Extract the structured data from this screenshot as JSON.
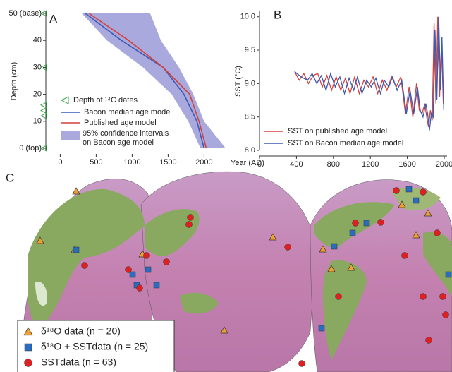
{
  "chart_data": [
    {
      "type": "depth-age",
      "panel": "A",
      "x_label": "Year (AD)",
      "y_label": "Depth (cm)",
      "xlim": [
        -200,
        2300
      ],
      "ylim": [
        0,
        50
      ],
      "xticks": [
        0,
        500,
        1000,
        1500,
        2000
      ],
      "yticks": [
        {
          "value": 0,
          "label": "0 (top)"
        },
        10,
        20,
        30,
        40,
        {
          "value": 50,
          "label": "50 (base)"
        }
      ],
      "depths": [
        0,
        10,
        20,
        30,
        40,
        50
      ],
      "c14_dates": {
        "name": "Depth of ¹⁴C dates",
        "color": "#3aa84a",
        "depths": [
          0,
          12,
          14,
          16,
          30,
          50
        ]
      },
      "band": {
        "name": "95% confidence intervals on Bacon age model",
        "color": "#a9a9dd",
        "left": [
          1950,
          1780,
          1550,
          1150,
          650,
          300
        ],
        "right": [
          2300,
          2000,
          1850,
          1650,
          1400,
          1250
        ]
      },
      "series": [
        {
          "name": "Bacon median age model",
          "color": "#3a5bb5",
          "values": [
            2000,
            1900,
            1720,
            1430,
            850,
            350
          ]
        },
        {
          "name": "Published age model",
          "color": "#d6413a",
          "values": [
            2030,
            1930,
            1800,
            1430,
            950,
            400
          ]
        }
      ]
    },
    {
      "type": "line",
      "panel": "B",
      "y_label": "SST (°C)",
      "xlim": [
        0,
        2000
      ],
      "ylim": [
        8.0,
        10.05
      ],
      "xticks": [
        0,
        400,
        800,
        1200,
        1600,
        2000
      ],
      "yticks": [
        {
          "value": 8,
          "label": "8.0"
        },
        8.5,
        {
          "value": 9,
          "label": "9.0"
        },
        9.5,
        {
          "value": 10,
          "label": "10.0"
        }
      ],
      "series": [
        {
          "name": "SST on published age model",
          "color": "#d6413a",
          "x": [
            380,
            430,
            480,
            530,
            580,
            630,
            680,
            730,
            780,
            830,
            880,
            930,
            980,
            1030,
            1080,
            1130,
            1180,
            1230,
            1280,
            1330,
            1380,
            1430,
            1480,
            1530,
            1580,
            1620,
            1660,
            1700,
            1730,
            1760,
            1790,
            1810,
            1830,
            1850,
            1870,
            1890,
            1910,
            1930,
            1950,
            1970,
            1990
          ],
          "values": [
            9.18,
            9.05,
            9.15,
            9.0,
            9.12,
            9.15,
            8.95,
            9.12,
            8.9,
            9.1,
            8.9,
            9.08,
            8.85,
            9.1,
            8.85,
            9.05,
            8.95,
            9.1,
            8.85,
            9.05,
            8.9,
            9.1,
            8.95,
            9.1,
            8.55,
            8.95,
            8.5,
            9.0,
            8.6,
            8.55,
            8.7,
            8.5,
            8.35,
            8.6,
            8.45,
            9.9,
            8.7,
            10.0,
            8.8,
            9.6,
            8.7
          ]
        },
        {
          "name": "SST on Bacon median age model",
          "color": "#3a5bb5",
          "x": [
            380,
            450,
            520,
            570,
            620,
            670,
            720,
            770,
            820,
            870,
            920,
            970,
            1020,
            1060,
            1110,
            1160,
            1210,
            1260,
            1310,
            1350,
            1400,
            1440,
            1490,
            1540,
            1590,
            1630,
            1670,
            1710,
            1740,
            1770,
            1800,
            1820,
            1840,
            1860,
            1880,
            1900,
            1920,
            1940,
            1960,
            1975,
            1995
          ],
          "values": [
            9.18,
            9.1,
            9.05,
            9.15,
            9.0,
            9.12,
            8.9,
            9.15,
            8.95,
            9.1,
            8.85,
            9.08,
            8.9,
            9.1,
            8.85,
            9.05,
            8.95,
            9.08,
            8.85,
            9.05,
            8.95,
            9.1,
            8.9,
            9.05,
            8.55,
            8.9,
            8.55,
            8.95,
            8.6,
            8.5,
            8.7,
            8.55,
            8.3,
            8.55,
            8.5,
            9.8,
            8.75,
            10.0,
            8.9,
            9.7,
            8.6
          ]
        }
      ]
    },
    {
      "type": "map",
      "panel": "C",
      "legend": [
        {
          "name": "δ¹⁸O data (n = 20)",
          "color": "#f0a030",
          "marker": "triangle"
        },
        {
          "name": "δ¹⁸O + SSTdata (n = 25)",
          "color": "#2a6cc0",
          "marker": "square"
        },
        {
          "name": "SSTdata (n = 63)",
          "color": "#e02020",
          "marker": "circle"
        }
      ]
    }
  ]
}
